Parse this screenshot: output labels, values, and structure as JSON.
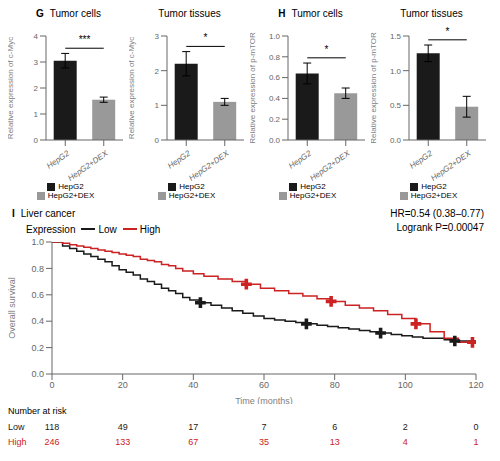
{
  "chart_data": [
    {
      "type": "bar",
      "panel_label": "G",
      "title": "Tumor cells",
      "y_label": "Relative expression of c-Myc",
      "categories": [
        "HepG2",
        "HepG2+DEX"
      ],
      "values": [
        3.05,
        1.55
      ],
      "errors": [
        0.28,
        0.1
      ],
      "colors": [
        "#1a1a1a",
        "#999999"
      ],
      "ylim": [
        0,
        4
      ],
      "yticks": [
        0,
        1,
        2,
        3,
        4
      ],
      "annotations": [
        "***"
      ],
      "legend": "bottom",
      "grid": false
    },
    {
      "type": "bar",
      "title": "Tumor tissues",
      "y_label": "Relative expression of c-Myc",
      "categories": [
        "HepG2",
        "HepG2+DEX"
      ],
      "values": [
        2.2,
        1.1
      ],
      "errors": [
        0.35,
        0.1
      ],
      "colors": [
        "#1a1a1a",
        "#999999"
      ],
      "ylim": [
        0,
        3
      ],
      "yticks": [
        0,
        1,
        2,
        3
      ],
      "annotations": [
        "*"
      ],
      "legend": "bottom",
      "grid": false
    },
    {
      "type": "bar",
      "panel_label": "H",
      "title": "Tumor cells",
      "y_label": "Relative expression of p-mTOR",
      "categories": [
        "HepG2",
        "HepG2+DEX"
      ],
      "values": [
        0.64,
        0.45
      ],
      "errors": [
        0.1,
        0.05
      ],
      "colors": [
        "#1a1a1a",
        "#999999"
      ],
      "ylim": [
        0,
        1
      ],
      "yticks": [
        {
          "value": 0,
          "label": "0.0"
        },
        0.2,
        0.4,
        0.6,
        0.8,
        {
          "value": 1,
          "label": "1.0"
        }
      ],
      "annotations": [
        "*"
      ],
      "legend": "bottom",
      "grid": false
    },
    {
      "type": "bar",
      "title": "Tumor tissues",
      "y_label": "Relative expression of p-mTOR",
      "categories": [
        "HepG2",
        "HepG2+DEX"
      ],
      "values": [
        1.25,
        0.48
      ],
      "errors": [
        0.12,
        0.15
      ],
      "colors": [
        "#1a1a1a",
        "#999999"
      ],
      "ylim": [
        0,
        1.5
      ],
      "yticks": [
        {
          "value": 0,
          "label": "0.0"
        },
        0.5,
        {
          "value": 1,
          "label": "1.0"
        },
        1.5
      ],
      "annotations": [
        "*"
      ],
      "legend": "bottom",
      "grid": false
    },
    {
      "type": "line",
      "panel_label": "I",
      "title": "Liver cancer",
      "annotations": [
        "HR=0.54 (0.38–0.77)",
        "Logrank P=0.00047"
      ],
      "x_label": "Time (months)",
      "y_label": "Overall survival",
      "xlim": [
        0,
        120
      ],
      "ylim": [
        0,
        1
      ],
      "xticks": [
        0,
        20,
        40,
        60,
        80,
        100,
        120
      ],
      "yticks": [
        {
          "value": 0,
          "label": "0.0"
        },
        0.2,
        0.4,
        0.6,
        0.8,
        {
          "value": 1,
          "label": "1.0"
        }
      ],
      "legend_title": "Expression",
      "legend": "top",
      "grid": false,
      "series": [
        {
          "name": "Low",
          "color": "#1a1a1a",
          "line_style": "step",
          "marker": "+",
          "x": [
            0,
            3,
            5,
            7,
            9,
            11,
            13,
            15,
            17,
            19,
            21,
            23,
            25,
            27,
            29,
            31,
            33,
            35,
            37,
            39,
            42,
            45,
            48,
            51,
            54,
            57,
            60,
            63,
            66,
            69,
            72,
            75,
            78,
            81,
            84,
            87,
            90,
            93,
            96,
            99,
            102,
            105,
            108,
            111,
            114,
            117,
            120
          ],
          "values": [
            1.0,
            0.97,
            0.95,
            0.93,
            0.91,
            0.89,
            0.87,
            0.85,
            0.82,
            0.79,
            0.77,
            0.75,
            0.72,
            0.7,
            0.68,
            0.65,
            0.63,
            0.61,
            0.58,
            0.56,
            0.54,
            0.52,
            0.5,
            0.48,
            0.46,
            0.44,
            0.42,
            0.41,
            0.4,
            0.39,
            0.38,
            0.37,
            0.36,
            0.35,
            0.34,
            0.33,
            0.32,
            0.31,
            0.3,
            0.29,
            0.28,
            0.27,
            0.27,
            0.26,
            0.25,
            0.25,
            0.24
          ],
          "censor_x": [
            42,
            72,
            93,
            114
          ],
          "censor_values": [
            0.54,
            0.38,
            0.31,
            0.25
          ]
        },
        {
          "name": "High",
          "color": "#cc2222",
          "line_style": "step",
          "marker": "+",
          "x": [
            0,
            3,
            5,
            7,
            9,
            11,
            13,
            15,
            17,
            19,
            21,
            23,
            25,
            27,
            29,
            31,
            33,
            35,
            37,
            40,
            43,
            47,
            51,
            55,
            59,
            63,
            67,
            71,
            75,
            79,
            83,
            87,
            91,
            95,
            99,
            103,
            107,
            111,
            115,
            119
          ],
          "values": [
            1.0,
            0.99,
            0.98,
            0.97,
            0.96,
            0.95,
            0.94,
            0.93,
            0.92,
            0.91,
            0.9,
            0.89,
            0.87,
            0.86,
            0.85,
            0.83,
            0.82,
            0.8,
            0.78,
            0.76,
            0.74,
            0.72,
            0.7,
            0.68,
            0.65,
            0.63,
            0.61,
            0.59,
            0.57,
            0.55,
            0.52,
            0.5,
            0.48,
            0.45,
            0.42,
            0.38,
            0.32,
            0.27,
            0.24,
            0.24
          ],
          "censor_x": [
            55,
            79,
            103,
            119
          ],
          "censor_values": [
            0.68,
            0.55,
            0.38,
            0.24
          ]
        }
      ],
      "risk_table": {
        "title": "Number at risk",
        "times": [
          0,
          20,
          40,
          60,
          80,
          100,
          120
        ],
        "rows": [
          {
            "name": "Low",
            "color": "#1a1a1a",
            "values": [
              118,
              49,
              17,
              7,
              6,
              2,
              0
            ]
          },
          {
            "name": "High",
            "color": "#cc2222",
            "values": [
              246,
              133,
              67,
              35,
              13,
              4,
              1
            ]
          }
        ]
      }
    }
  ]
}
